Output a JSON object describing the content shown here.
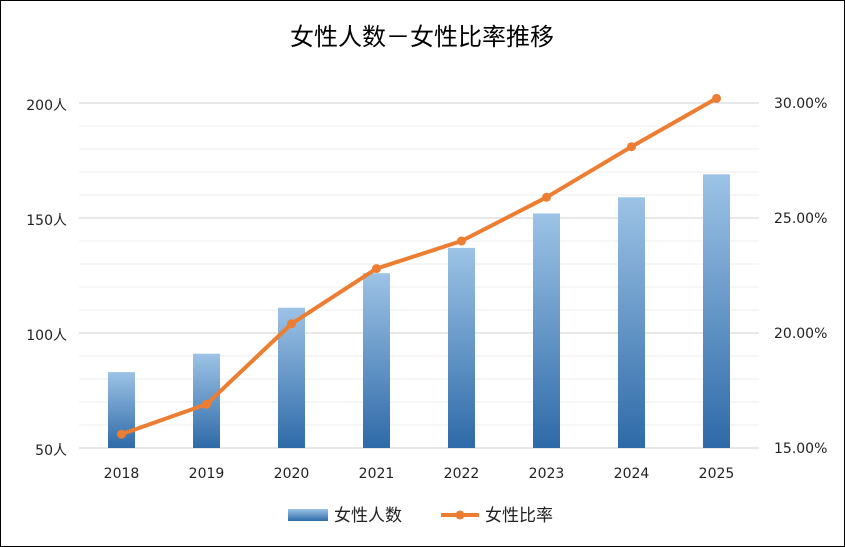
{
  "chart_data": {
    "type": "bar+line",
    "title": "女性人数－女性比率推移",
    "categories": [
      "2018",
      "2019",
      "2020",
      "2021",
      "2022",
      "2023",
      "2024",
      "2025"
    ],
    "series": [
      {
        "name": "女性人数",
        "type": "bar",
        "axis": "left",
        "values": [
          83,
          91,
          111,
          126,
          137,
          152,
          159,
          169
        ],
        "color_top": "#9dc3e6",
        "color_bottom": "#2e6aa8"
      },
      {
        "name": "女性比率",
        "type": "line",
        "axis": "right",
        "values": [
          15.6,
          16.9,
          20.4,
          22.8,
          24.0,
          25.9,
          28.1,
          30.2
        ],
        "color": "#ed7d31"
      }
    ],
    "y_left": {
      "min": 50,
      "max": 200,
      "ticks": [
        50,
        100,
        150,
        200
      ],
      "tick_labels": [
        "50人",
        "100人",
        "150人",
        "200人"
      ]
    },
    "y_right": {
      "min": 15,
      "max": 30,
      "ticks": [
        15,
        20,
        25,
        30
      ],
      "tick_labels": [
        "15.00%",
        "20.00%",
        "25.00%",
        "30.00%"
      ]
    },
    "grid": true,
    "legend": "bottom"
  }
}
